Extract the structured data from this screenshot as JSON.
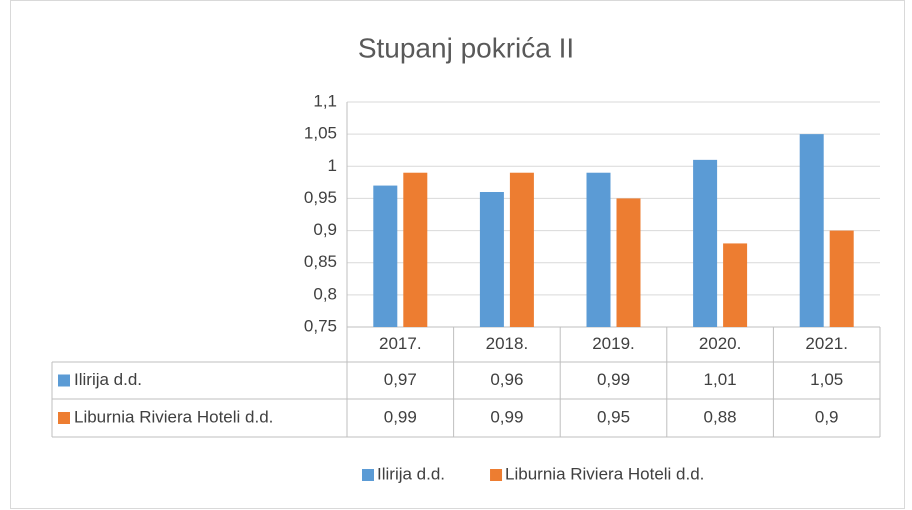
{
  "chart_data": {
    "type": "bar",
    "title": "Stupanj pokrića II",
    "categories": [
      "2017.",
      "2018.",
      "2019.",
      "2020.",
      "2021."
    ],
    "series": [
      {
        "name": "Ilirija d.d.",
        "color": "#5b9bd5",
        "values": [
          0.97,
          0.96,
          0.99,
          1.01,
          1.05
        ],
        "value_labels": [
          "0,97",
          "0,96",
          "0,99",
          "1,01",
          "1,05"
        ]
      },
      {
        "name": "Liburnia Riviera Hoteli d.d.",
        "color": "#ed7d31",
        "values": [
          0.99,
          0.99,
          0.95,
          0.88,
          0.9
        ],
        "value_labels": [
          "0,99",
          "0,99",
          "0,95",
          "0,88",
          "0,9"
        ]
      }
    ],
    "ylim": [
      0.75,
      1.1
    ],
    "yticks": [
      {
        "value": 0.75,
        "label": "0,75"
      },
      {
        "value": 0.8,
        "label": "0,8"
      },
      {
        "value": 0.85,
        "label": "0,85"
      },
      {
        "value": 0.9,
        "label": "0,9"
      },
      {
        "value": 0.95,
        "label": "0,95"
      },
      1,
      {
        "value": 1.05,
        "label": "1,05"
      },
      {
        "value": 1.1,
        "label": "1,1"
      }
    ],
    "grid": true,
    "legend": "bottom"
  }
}
